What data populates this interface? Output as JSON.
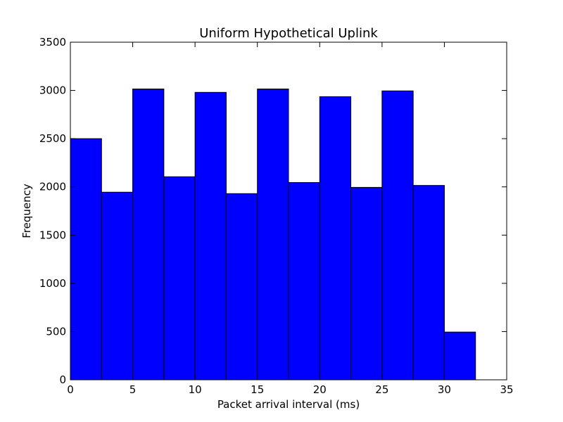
{
  "chart_data": {
    "type": "bar",
    "subtype": "histogram",
    "title": "Uniform Hypothetical Uplink",
    "xlabel": "Packet arrival interval (ms)",
    "ylabel": "Frequency",
    "xlim": [
      0,
      35
    ],
    "ylim": [
      0,
      3500
    ],
    "xticks": [
      0,
      5,
      10,
      15,
      20,
      25,
      30,
      35
    ],
    "yticks": [
      0,
      500,
      1000,
      1500,
      2000,
      2500,
      3000,
      3500
    ],
    "xtick_labels": [
      "0",
      "5",
      "10",
      "15",
      "20",
      "25",
      "30",
      "35"
    ],
    "ytick_labels": [
      "0",
      "500",
      "1000",
      "1500",
      "2000",
      "2500",
      "3000",
      "3500"
    ],
    "bins": [
      {
        "x0": 0.0,
        "x1": 2.5,
        "value": 2500
      },
      {
        "x0": 2.5,
        "x1": 5.0,
        "value": 1945
      },
      {
        "x0": 5.0,
        "x1": 7.5,
        "value": 3015
      },
      {
        "x0": 7.5,
        "x1": 10.0,
        "value": 2105
      },
      {
        "x0": 10.0,
        "x1": 12.5,
        "value": 2980
      },
      {
        "x0": 12.5,
        "x1": 15.0,
        "value": 1930
      },
      {
        "x0": 15.0,
        "x1": 17.5,
        "value": 3015
      },
      {
        "x0": 17.5,
        "x1": 20.0,
        "value": 2045
      },
      {
        "x0": 20.0,
        "x1": 22.5,
        "value": 2935
      },
      {
        "x0": 22.5,
        "x1": 25.0,
        "value": 1995
      },
      {
        "x0": 25.0,
        "x1": 27.5,
        "value": 2995
      },
      {
        "x0": 27.5,
        "x1": 30.0,
        "value": 2015
      },
      {
        "x0": 30.0,
        "x1": 32.5,
        "value": 495
      }
    ],
    "bar_color": "#0000ff",
    "edge_color": "#000000",
    "grid": false,
    "legend": "none"
  }
}
